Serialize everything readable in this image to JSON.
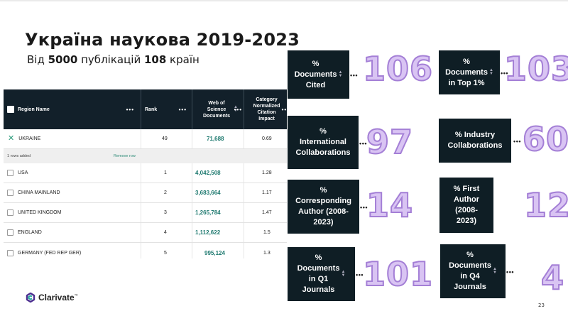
{
  "slide": {
    "title": "Україна наукова 2019-2023",
    "subtitle_pre": "Від ",
    "subtitle_n1": "5000",
    "subtitle_mid": " публікацій ",
    "subtitle_n2": "108",
    "subtitle_post": " країн",
    "page_number": "23"
  },
  "table": {
    "headers": {
      "region": "Region Name",
      "rank": "Rank",
      "docs": "Web of Science Documents",
      "cnci": "Category Normalized Citation Impact"
    },
    "selected": {
      "name": "UKRAINE",
      "rank": "49",
      "docs": "71,688",
      "cnci": "0.69"
    },
    "rows_added": "1 rows added",
    "remove_row": "Remove row",
    "rows": [
      {
        "name": "USA",
        "rank": "1",
        "docs": "4,042,508",
        "cnci": "1.28"
      },
      {
        "name": "CHINA MAINLAND",
        "rank": "2",
        "docs": "3,683,664",
        "cnci": "1.17"
      },
      {
        "name": "UNITED KINGDOM",
        "rank": "3",
        "docs": "1,265,784",
        "cnci": "1.47"
      },
      {
        "name": "ENGLAND",
        "rank": "4",
        "docs": "1,112,622",
        "cnci": "1.5"
      },
      {
        "name": "GERMANY (FED REP GER)",
        "rank": "5",
        "docs": "995,124",
        "cnci": "1.3"
      }
    ]
  },
  "metrics": {
    "docs_cited": {
      "label": "%\nDocuments\nCited",
      "value": "106"
    },
    "top1": {
      "label": "%\nDocuments\nin Top 1%",
      "value": "103"
    },
    "intl_collab": {
      "label": "%\nInternational\nCollaborations",
      "value": "97"
    },
    "industry_collab": {
      "label": "% Industry\nCollaborations",
      "value": "60"
    },
    "corresponding": {
      "label": "%\nCorresponding\nAuthor (2008-\n2023)",
      "value": "14"
    },
    "first_author": {
      "label": "% First\nAuthor\n(2008-\n2023)",
      "value": "12"
    },
    "q1": {
      "label": "%\nDocuments\nin Q1\nJournals",
      "value": "101"
    },
    "q4": {
      "label": "%\nDocuments\nin Q4\nJournals",
      "value": "4"
    }
  },
  "logo": {
    "text": "Clarivate",
    "tm": "™"
  },
  "icons": {
    "header_checkbox": "checkbox-icon",
    "menu": "more-dots-icon",
    "sort": "sort-arrows-icon",
    "remove": "close-x-icon",
    "logo": "clarivate-logo-icon"
  },
  "colors": {
    "header_bg": "#12202a",
    "metric_box_bg": "#0f1e25",
    "number_fill": "#d9c4f3",
    "number_stroke": "#a47fd6",
    "link_teal": "#1f7a70"
  }
}
